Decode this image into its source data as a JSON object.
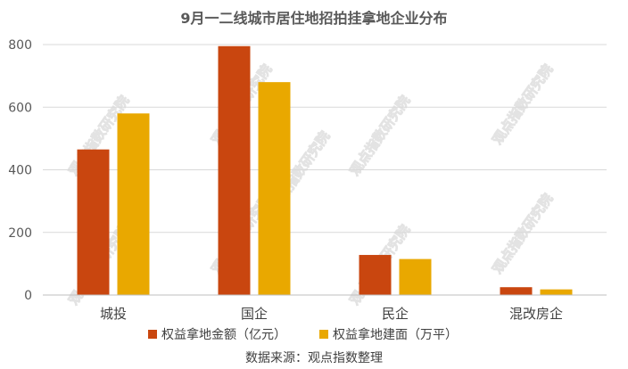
{
  "chart_data": {
    "type": "bar",
    "title": "9月一二线城市居住地招拍挂拿地企业分布",
    "categories": [
      "城投",
      "国企",
      "民企",
      "混改房企"
    ],
    "series": [
      {
        "name": "权益拿地金额（亿元）",
        "color": "#C9460F",
        "values": [
          465,
          795,
          128,
          25
        ]
      },
      {
        "name": "权益拿地建面（万平）",
        "color": "#E9A800",
        "values": [
          580,
          680,
          115,
          18
        ]
      }
    ],
    "ylim": [
      0,
      800
    ],
    "yticks": [
      0,
      200,
      400,
      600,
      800
    ],
    "grid": true,
    "legend": "bottom"
  },
  "watermark": "观点指数研究院",
  "source": "数据来源：观点指数整理"
}
